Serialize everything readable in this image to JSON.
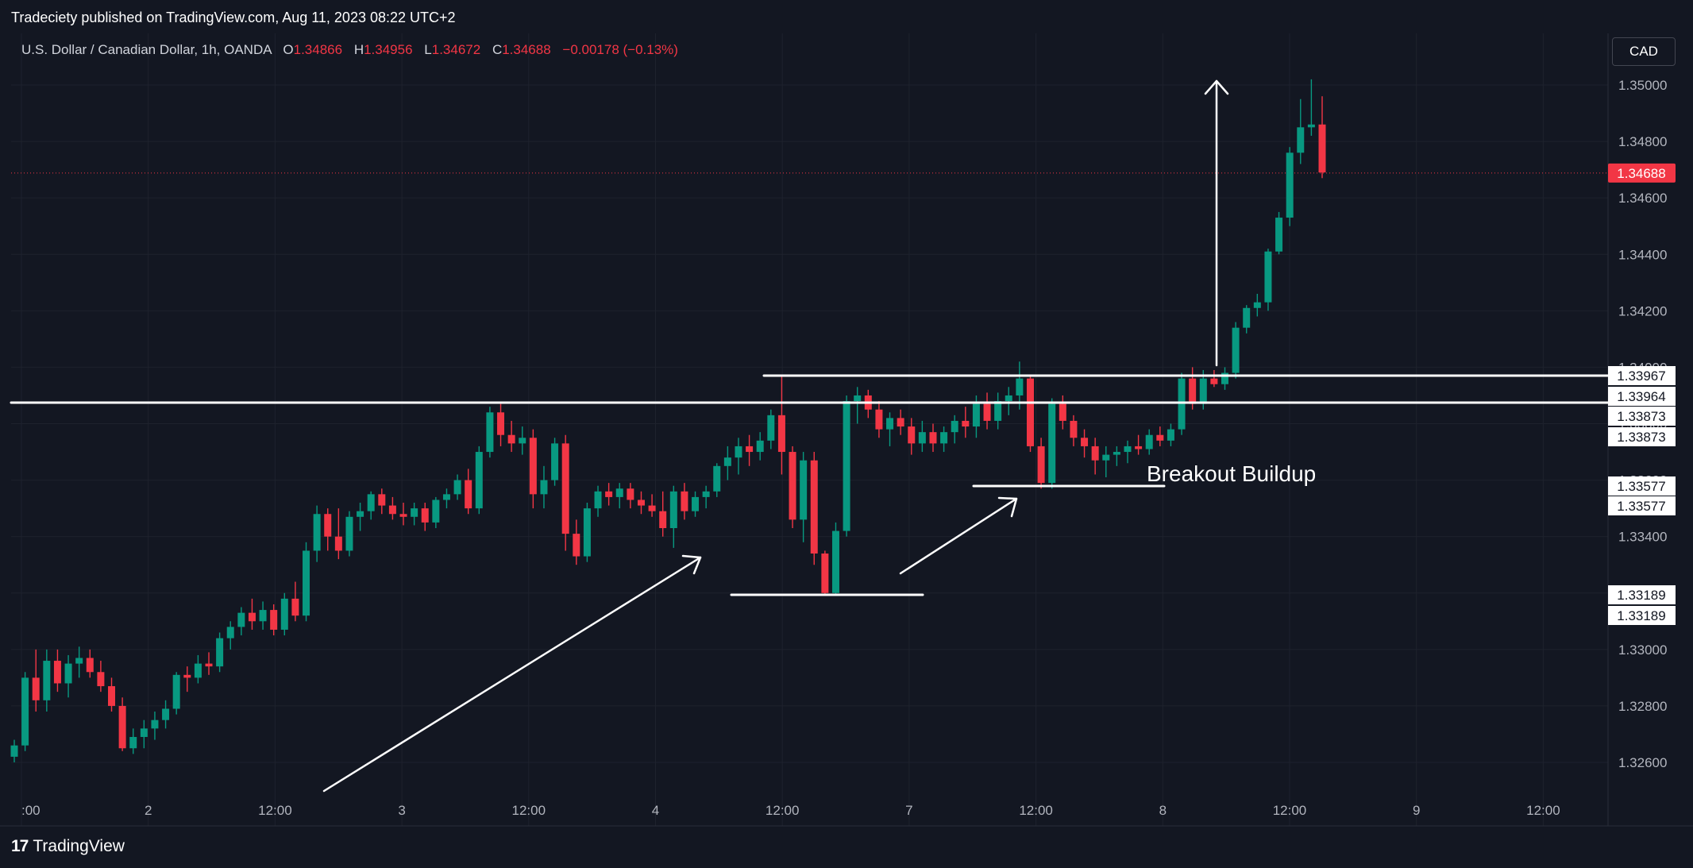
{
  "header": {
    "published": "Tradeciety published on TradingView.com, Aug 11, 2023 08:22 UTC+2"
  },
  "symbol": {
    "name": "U.S. Dollar / Canadian Dollar, 1h, OANDA",
    "o_label": "O",
    "o_value": "1.34866",
    "h_label": "H",
    "h_value": "1.34956",
    "l_label": "L",
    "l_value": "1.34672",
    "c_label": "C",
    "c_value": "1.34688",
    "change": "−0.00178 (−0.13%)"
  },
  "currency_button": "CAD",
  "footer": {
    "brand": "TradingView",
    "logo": "17"
  },
  "colors": {
    "up": "#089981",
    "down": "#f23645",
    "background": "#131722",
    "grid": "#1e222d",
    "annotation": "#ffffff"
  },
  "chart_data": {
    "type": "candlestick",
    "title": "U.S. Dollar / Canadian Dollar, 1h, OANDA",
    "ylim": [
      1.325,
      1.3512
    ],
    "y_ticks": [
      "1.32600",
      "1.32800",
      "1.33000",
      "1.33200",
      "1.33400",
      "1.33600",
      "1.33800",
      "1.34000",
      "1.34200",
      "1.34400",
      "1.34600",
      "1.34800",
      "1.35000"
    ],
    "x_ticks": [
      ":00",
      "2",
      "12:00",
      "3",
      "12:00",
      "4",
      "12:00",
      "7",
      "12:00",
      "8",
      "12:00",
      "9",
      "12:00"
    ],
    "last_price": "1.34688",
    "price_labels": [
      "1.33967",
      "1.33964",
      "1.33873",
      "1.33873",
      "1.33577",
      "1.33577",
      "1.33189",
      "1.33189"
    ],
    "annotation_text": "Breakout Buildup",
    "candles": [
      [
        1.3262,
        1.3268,
        1.326,
        1.3266
      ],
      [
        1.3266,
        1.3292,
        1.3264,
        1.329
      ],
      [
        1.329,
        1.33,
        1.3278,
        1.3282
      ],
      [
        1.3282,
        1.33,
        1.3278,
        1.3296
      ],
      [
        1.3296,
        1.33,
        1.3285,
        1.3288
      ],
      [
        1.3288,
        1.3298,
        1.3283,
        1.3295
      ],
      [
        1.3295,
        1.3301,
        1.329,
        1.3297
      ],
      [
        1.3297,
        1.33,
        1.329,
        1.3292
      ],
      [
        1.3292,
        1.3296,
        1.3285,
        1.3287
      ],
      [
        1.3287,
        1.329,
        1.3278,
        1.328
      ],
      [
        1.328,
        1.3283,
        1.3264,
        1.3265
      ],
      [
        1.3265,
        1.3272,
        1.3263,
        1.3269
      ],
      [
        1.3269,
        1.3275,
        1.3265,
        1.3272
      ],
      [
        1.3272,
        1.3278,
        1.3268,
        1.3275
      ],
      [
        1.3275,
        1.3282,
        1.3272,
        1.3279
      ],
      [
        1.3279,
        1.3292,
        1.3277,
        1.3291
      ],
      [
        1.3291,
        1.3294,
        1.3285,
        1.329
      ],
      [
        1.329,
        1.3298,
        1.3288,
        1.3295
      ],
      [
        1.3295,
        1.3299,
        1.3291,
        1.3294
      ],
      [
        1.3294,
        1.3306,
        1.3292,
        1.3304
      ],
      [
        1.3304,
        1.331,
        1.33,
        1.3308
      ],
      [
        1.3308,
        1.3315,
        1.3305,
        1.3313
      ],
      [
        1.3313,
        1.3318,
        1.3307,
        1.331
      ],
      [
        1.331,
        1.3317,
        1.3307,
        1.3314
      ],
      [
        1.3314,
        1.3316,
        1.3305,
        1.3307
      ],
      [
        1.3307,
        1.332,
        1.3305,
        1.3318
      ],
      [
        1.3318,
        1.3324,
        1.331,
        1.3312
      ],
      [
        1.3312,
        1.3338,
        1.331,
        1.3335
      ],
      [
        1.3335,
        1.3351,
        1.3331,
        1.3348
      ],
      [
        1.3348,
        1.335,
        1.3335,
        1.334
      ],
      [
        1.334,
        1.335,
        1.3332,
        1.3335
      ],
      [
        1.3335,
        1.3349,
        1.3333,
        1.3347
      ],
      [
        1.3347,
        1.3352,
        1.3342,
        1.3349
      ],
      [
        1.3349,
        1.3356,
        1.3346,
        1.3355
      ],
      [
        1.3355,
        1.3357,
        1.3348,
        1.3351
      ],
      [
        1.3351,
        1.3354,
        1.3346,
        1.3348
      ],
      [
        1.3348,
        1.3352,
        1.3344,
        1.3347
      ],
      [
        1.3347,
        1.3352,
        1.3344,
        1.335
      ],
      [
        1.335,
        1.3352,
        1.3342,
        1.3345
      ],
      [
        1.3345,
        1.3354,
        1.3343,
        1.3353
      ],
      [
        1.3353,
        1.3357,
        1.335,
        1.3355
      ],
      [
        1.3355,
        1.3362,
        1.3353,
        1.336
      ],
      [
        1.336,
        1.3364,
        1.3348,
        1.335
      ],
      [
        1.335,
        1.3372,
        1.3348,
        1.337
      ],
      [
        1.337,
        1.3386,
        1.3368,
        1.3384
      ],
      [
        1.3384,
        1.3387,
        1.3372,
        1.3376
      ],
      [
        1.3376,
        1.3381,
        1.337,
        1.3373
      ],
      [
        1.3373,
        1.3379,
        1.3369,
        1.3375
      ],
      [
        1.3375,
        1.3378,
        1.335,
        1.3355
      ],
      [
        1.3355,
        1.3365,
        1.335,
        1.336
      ],
      [
        1.336,
        1.3375,
        1.3358,
        1.3373
      ],
      [
        1.3373,
        1.3376,
        1.3335,
        1.3341
      ],
      [
        1.3341,
        1.3346,
        1.333,
        1.3333
      ],
      [
        1.3333,
        1.3352,
        1.3331,
        1.335
      ],
      [
        1.335,
        1.3358,
        1.3347,
        1.3356
      ],
      [
        1.3356,
        1.3359,
        1.3351,
        1.3354
      ],
      [
        1.3354,
        1.3359,
        1.335,
        1.3357
      ],
      [
        1.3357,
        1.3359,
        1.335,
        1.3353
      ],
      [
        1.3353,
        1.3356,
        1.3348,
        1.3351
      ],
      [
        1.3351,
        1.3355,
        1.3347,
        1.3349
      ],
      [
        1.3349,
        1.3356,
        1.334,
        1.3343
      ],
      [
        1.3343,
        1.3358,
        1.3336,
        1.3356
      ],
      [
        1.3356,
        1.3359,
        1.3346,
        1.3349
      ],
      [
        1.3349,
        1.3356,
        1.3347,
        1.3354
      ],
      [
        1.3354,
        1.3358,
        1.335,
        1.3356
      ],
      [
        1.3356,
        1.3366,
        1.3354,
        1.3365
      ],
      [
        1.3365,
        1.3372,
        1.336,
        1.3368
      ],
      [
        1.3368,
        1.3375,
        1.3362,
        1.3372
      ],
      [
        1.3372,
        1.3376,
        1.3365,
        1.337
      ],
      [
        1.337,
        1.3377,
        1.3367,
        1.3374
      ],
      [
        1.3374,
        1.3385,
        1.3371,
        1.3383
      ],
      [
        1.3383,
        1.3397,
        1.3362,
        1.337
      ],
      [
        1.337,
        1.3372,
        1.3343,
        1.3346
      ],
      [
        1.3346,
        1.337,
        1.3338,
        1.3367
      ],
      [
        1.3367,
        1.337,
        1.333,
        1.3334
      ],
      [
        1.3334,
        1.3335,
        1.3319,
        1.332
      ],
      [
        1.332,
        1.3345,
        1.3319,
        1.3342
      ],
      [
        1.3342,
        1.339,
        1.334,
        1.3388
      ],
      [
        1.3388,
        1.3393,
        1.338,
        1.339
      ],
      [
        1.339,
        1.3392,
        1.3382,
        1.3385
      ],
      [
        1.3385,
        1.3388,
        1.3375,
        1.3378
      ],
      [
        1.3378,
        1.3384,
        1.3372,
        1.3382
      ],
      [
        1.3382,
        1.3385,
        1.3376,
        1.3379
      ],
      [
        1.3379,
        1.3382,
        1.3369,
        1.3373
      ],
      [
        1.3373,
        1.3381,
        1.337,
        1.3377
      ],
      [
        1.3377,
        1.338,
        1.337,
        1.3373
      ],
      [
        1.3373,
        1.3379,
        1.337,
        1.3377
      ],
      [
        1.3377,
        1.3383,
        1.3373,
        1.3381
      ],
      [
        1.3381,
        1.3386,
        1.3375,
        1.3379
      ],
      [
        1.3379,
        1.339,
        1.3375,
        1.3387
      ],
      [
        1.3387,
        1.3391,
        1.3378,
        1.3381
      ],
      [
        1.3381,
        1.3391,
        1.3378,
        1.3388
      ],
      [
        1.3388,
        1.3393,
        1.3383,
        1.339
      ],
      [
        1.339,
        1.3402,
        1.3385,
        1.3396
      ],
      [
        1.3396,
        1.3397,
        1.337,
        1.3372
      ],
      [
        1.3372,
        1.3375,
        1.3357,
        1.3359
      ],
      [
        1.3359,
        1.3389,
        1.3357,
        1.3387
      ],
      [
        1.3387,
        1.339,
        1.3378,
        1.3381
      ],
      [
        1.3381,
        1.3383,
        1.3372,
        1.3375
      ],
      [
        1.3375,
        1.3378,
        1.3368,
        1.3372
      ],
      [
        1.3372,
        1.3375,
        1.3362,
        1.3367
      ],
      [
        1.3367,
        1.3372,
        1.3361,
        1.3369
      ],
      [
        1.3369,
        1.3372,
        1.3365,
        1.337
      ],
      [
        1.337,
        1.3374,
        1.3366,
        1.3372
      ],
      [
        1.3372,
        1.3376,
        1.3369,
        1.3371
      ],
      [
        1.3371,
        1.3378,
        1.3369,
        1.3376
      ],
      [
        1.3376,
        1.3379,
        1.3372,
        1.3374
      ],
      [
        1.3374,
        1.338,
        1.3372,
        1.3378
      ],
      [
        1.3378,
        1.3398,
        1.3376,
        1.3396
      ],
      [
        1.3396,
        1.34,
        1.3385,
        1.3387
      ],
      [
        1.3387,
        1.3399,
        1.3385,
        1.3396
      ],
      [
        1.3396,
        1.3399,
        1.3393,
        1.3394
      ],
      [
        1.3394,
        1.34,
        1.3392,
        1.3398
      ],
      [
        1.3398,
        1.3416,
        1.3396,
        1.3414
      ],
      [
        1.3414,
        1.3422,
        1.3412,
        1.3421
      ],
      [
        1.3421,
        1.3426,
        1.3418,
        1.3423
      ],
      [
        1.3423,
        1.3442,
        1.342,
        1.3441
      ],
      [
        1.3441,
        1.3455,
        1.344,
        1.3453
      ],
      [
        1.3453,
        1.3478,
        1.345,
        1.3476
      ],
      [
        1.3476,
        1.3495,
        1.3472,
        1.3485
      ],
      [
        1.3485,
        1.3502,
        1.3482,
        1.3486
      ],
      [
        1.3486,
        1.3496,
        1.3467,
        1.3469
      ]
    ]
  }
}
